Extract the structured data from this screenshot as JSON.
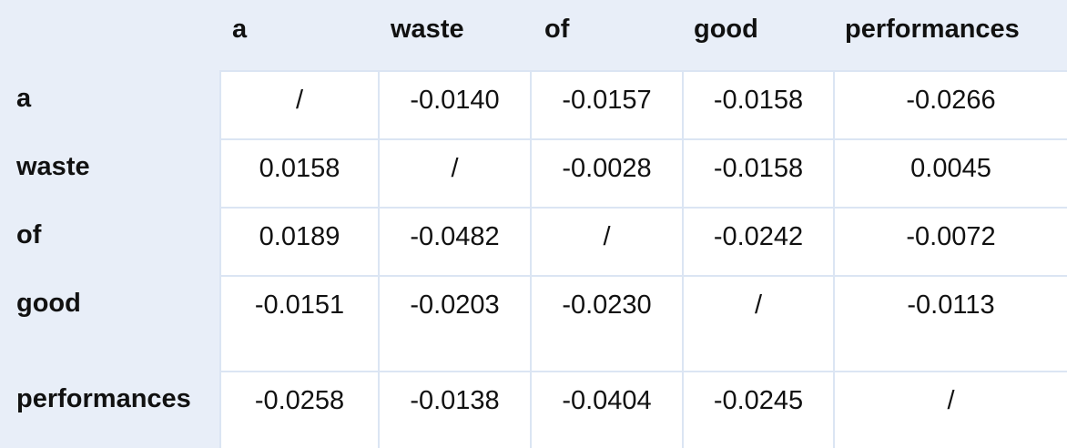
{
  "table": {
    "columns": [
      "a",
      "waste",
      "of",
      "good",
      "performances"
    ],
    "rows": [
      {
        "label": "a",
        "values": [
          "/",
          "-0.0140",
          "-0.0157",
          "-0.0158",
          "-0.0266"
        ]
      },
      {
        "label": "waste",
        "values": [
          "0.0158",
          "/",
          "-0.0028",
          "-0.0158",
          "0.0045"
        ]
      },
      {
        "label": "of",
        "values": [
          "0.0189",
          "-0.0482",
          "/",
          "-0.0242",
          "-0.0072"
        ]
      },
      {
        "label": "good",
        "values": [
          "-0.0151",
          "-0.0203",
          "-0.0230",
          "/",
          "-0.0113"
        ]
      },
      {
        "label": "performances",
        "values": [
          "-0.0258",
          "-0.0138",
          "-0.0404",
          "-0.0245",
          "/"
        ]
      }
    ]
  },
  "colors": {
    "header_background": "#e8eef8",
    "cell_background": "#ffffff",
    "grid_line": "#dbe5f3"
  }
}
